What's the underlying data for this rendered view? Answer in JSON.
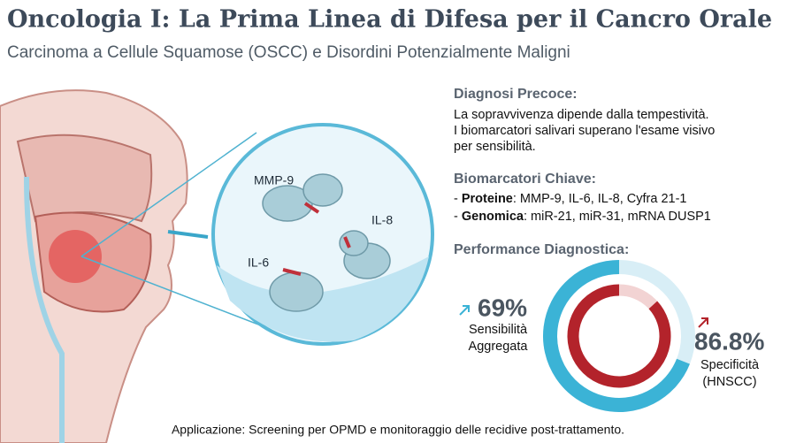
{
  "header": {
    "title": "Oncologia I: La Prima Linea di Difesa per il Cancro Orale",
    "subtitle": "Carcinoma a Cellule Squamose (OSCC) e Disordini Potenzialmente Maligni"
  },
  "illustration": {
    "labels": [
      "MMP-9",
      "IL-8",
      "IL-6"
    ]
  },
  "diagnosis": {
    "heading": "Diagnosi Precoce:",
    "lines": [
      "La sopravvivenza dipende dalla tempestività.",
      "I biomarcatori salivari superano l'esame visivo",
      "per sensibilità."
    ]
  },
  "biomarkers": {
    "heading": "Biomarcatori Chiave:",
    "items": [
      {
        "bullet": "- ",
        "label": "Proteine",
        "text": ": MMP-9, IL-6, IL-8, Cyfra 21-1"
      },
      {
        "bullet": "- ",
        "label": "Genomica",
        "text": ": miR-21, miR-31, mRNA DUSP1"
      }
    ]
  },
  "performance": {
    "heading": "Performance Diagnostica:",
    "stats": [
      {
        "value": 69,
        "label": "69%",
        "caption": [
          "Sensibilità",
          "Aggregata"
        ],
        "color": "#3bb3d6"
      },
      {
        "value": 86.8,
        "label": "86.8%",
        "caption": [
          "Specificità",
          "(HNSCC)"
        ],
        "color": "#b3232b"
      }
    ]
  },
  "footer": {
    "text": "Applicazione: Screening per OPMD e monitoraggio delle recidive post-trattamento."
  }
}
